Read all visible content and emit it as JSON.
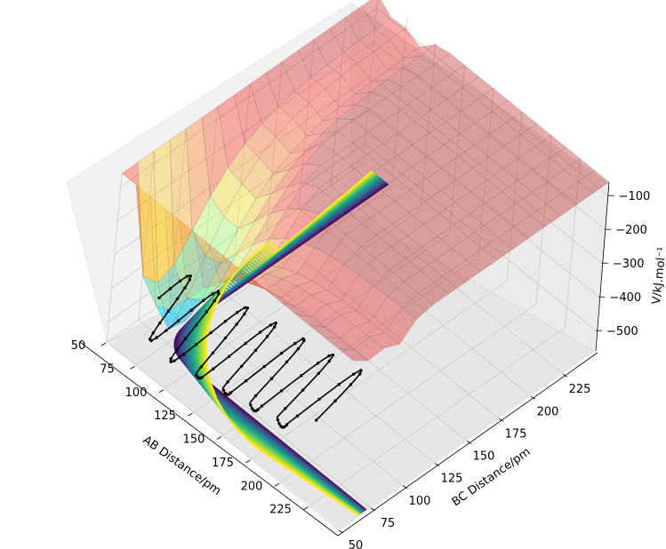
{
  "chart_data": {
    "type": "surface-3d",
    "title": "",
    "xlabel": "AB Distance/pm",
    "ylabel": "BC Distance/pm",
    "zlabel": "V/kJ.mol⁻¹",
    "xlim": [
      50,
      250
    ],
    "ylim": [
      50,
      250
    ],
    "zlim": [
      -560,
      -60
    ],
    "x_ticks": [
      "50",
      "75",
      "100",
      "125",
      "150",
      "175",
      "200",
      "225"
    ],
    "y_ticks": [
      "50",
      "75",
      "100",
      "125",
      "150",
      "175",
      "200",
      "225"
    ],
    "z_ticks": [
      "−100",
      "−200",
      "−300",
      "−400",
      "−500"
    ],
    "grid": true,
    "surface_colormap": "jet (semi-transparent)",
    "contour_colormap": "viridis",
    "contour_levels_count": 40,
    "trajectory": {
      "color": "#000000",
      "marker": "dot",
      "oscillation_peaks_ab_pm": [
        65,
        90,
        108,
        128,
        150,
        170,
        190
      ]
    }
  }
}
